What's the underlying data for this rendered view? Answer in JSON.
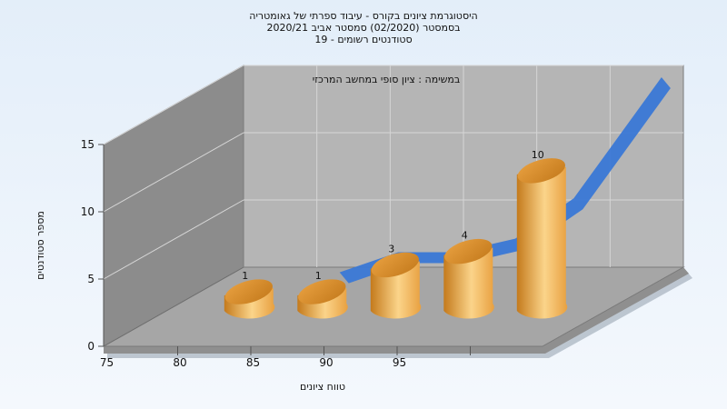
{
  "titles": {
    "line1": "היסטוגרמת ציונים בקורס - עיבוד ספרתי של גאומטריה",
    "line2": "בסמסטר  (02/2020)  סמסטר אביב 2020/21",
    "line3": "סטודנטים רשומים - 19"
  },
  "chart_data": {
    "type": "bar",
    "subtitle": "במשימה : ציון סופי במחשב המרכזי",
    "xlabel": "טווח ציונים",
    "ylabel": "מספר סטודנטים",
    "x_ticks": [
      "75",
      "80",
      "85",
      "90",
      "95"
    ],
    "y_ticks": [
      "0",
      "5",
      "10",
      "15"
    ],
    "ylim": [
      0,
      15
    ],
    "categories": [
      "75",
      "80",
      "85",
      "90",
      "95"
    ],
    "values": [
      1,
      1,
      3,
      4,
      10
    ],
    "data_labels": [
      "1",
      "1",
      "3",
      "4",
      "10"
    ],
    "cumulative_area": {
      "name": "",
      "x": [
        78,
        82,
        86,
        90,
        94,
        96,
        100
      ],
      "y": [
        0.5,
        2.0,
        2.0,
        3.0,
        6.0,
        9.0,
        15.0
      ]
    },
    "grid": true,
    "colors": {
      "bar": "#e8a040",
      "bar_light": "#fbd48a",
      "bar_dark": "#c47a1c",
      "area": "#3a78d6",
      "back_wall": "#b5b5b5",
      "side_wall": "#8c8c8c",
      "floor": "#a6a6a6",
      "grid": "#d6d6d6"
    }
  }
}
